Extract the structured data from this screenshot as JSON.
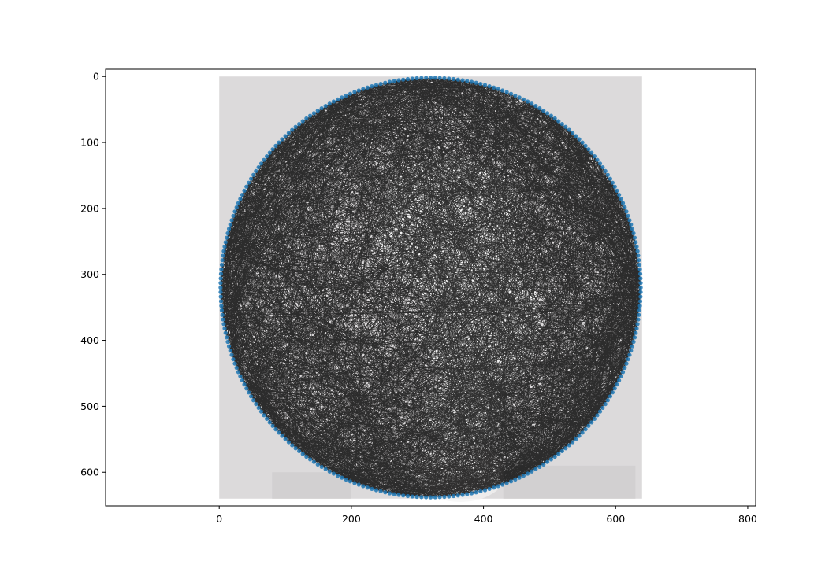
{
  "chart_data": {
    "type": "scatter",
    "description_of_content": "",
    "x_ticks": [
      0,
      200,
      400,
      600,
      800
    ],
    "y_ticks": [
      0,
      100,
      200,
      300,
      400,
      500,
      600
    ],
    "xlim": [
      -172,
      812
    ],
    "ylim": [
      651,
      -11
    ],
    "image_extent": {
      "x": [
        0,
        640
      ],
      "y": [
        0,
        640
      ]
    },
    "circle": {
      "center": [
        320,
        320
      ],
      "radius": 318
    },
    "nail_count": 288,
    "thread_count": 2200,
    "colors": {
      "nail": "#1f77b4",
      "thread": "#000000",
      "background_image": "#dcdadb",
      "highlight": "#f3f3f3"
    }
  }
}
